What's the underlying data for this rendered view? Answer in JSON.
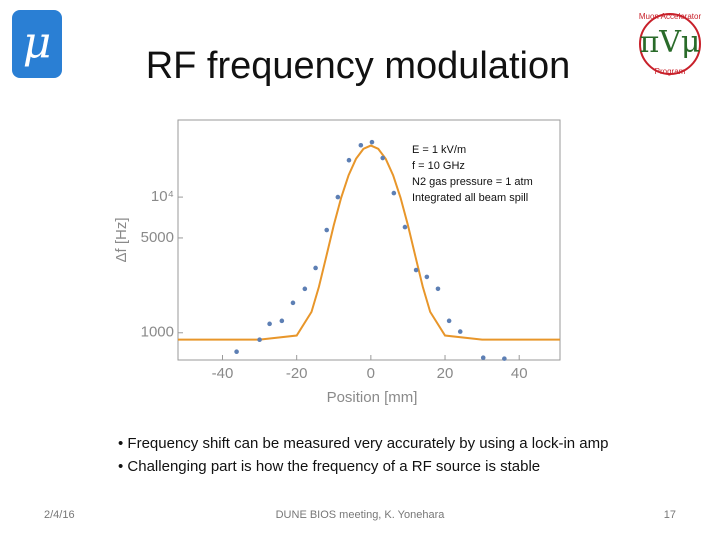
{
  "logo_left": "μ",
  "logo_right": [
    "Muon Accelerator",
    "Program"
  ],
  "title": "RF frequency modulation",
  "chart_data": {
    "type": "scatter",
    "x_label": "Position [mm]",
    "y_label": "Δf [Hz]",
    "xlim": [
      -52,
      51
    ],
    "ylim": [
      630,
      37000
    ],
    "y_log": true,
    "xticks": [
      -40,
      -20,
      0,
      20,
      40
    ],
    "yticks": [
      1000,
      5000,
      {
        "value": 10000,
        "label": "10⁴"
      }
    ],
    "annotation": [
      "E = 1 kV/m",
      "f = 10 GHz",
      "N2 gas pressure = 1 atm",
      "Integrated all beam spill"
    ],
    "series": [
      {
        "mode": "line",
        "color": "#e8962a",
        "x": [
          -52,
          -40,
          -30,
          -20,
          -16,
          -14,
          -12,
          -10,
          -8,
          -6,
          -4,
          -2,
          0,
          2,
          4,
          6,
          8,
          10,
          12,
          14,
          16,
          20,
          30,
          40,
          51
        ],
        "values": [
          890,
          890,
          890,
          954,
          1426,
          2184,
          3669,
          6196,
          9902,
          14499,
          19147,
          22671,
          23990,
          22671,
          19147,
          14499,
          9902,
          6196,
          3669,
          2184,
          1426,
          954,
          890,
          890,
          890
        ]
      },
      {
        "mode": "points",
        "color": "#5d7fb4",
        "x": [
          -36.2,
          -30,
          -27.3,
          -24,
          -21,
          -17.8,
          -14.9,
          -11.9,
          -8.9,
          -5.9,
          -2.7,
          0.3,
          3.2,
          6.2,
          9.2,
          12.2,
          15.1,
          18.1,
          21.1,
          24.1,
          30.3,
          36
        ],
        "values": [
          725,
          889,
          1164,
          1225,
          1662,
          2107,
          3003,
          5716,
          10000,
          18700,
          24100,
          25400,
          19400,
          10700,
          6010,
          2900,
          2580,
          2110,
          1225,
          1020,
          655,
          645
        ]
      }
    ]
  },
  "bullets": [
    "• Frequency shift can be measured very accurately by using a lock-in amp",
    "• Challenging part is how the frequency of a RF source is stable"
  ],
  "footer": {
    "date": "2/4/16",
    "center": "DUNE BIOS meeting, K. Yonehara",
    "page": "17"
  }
}
